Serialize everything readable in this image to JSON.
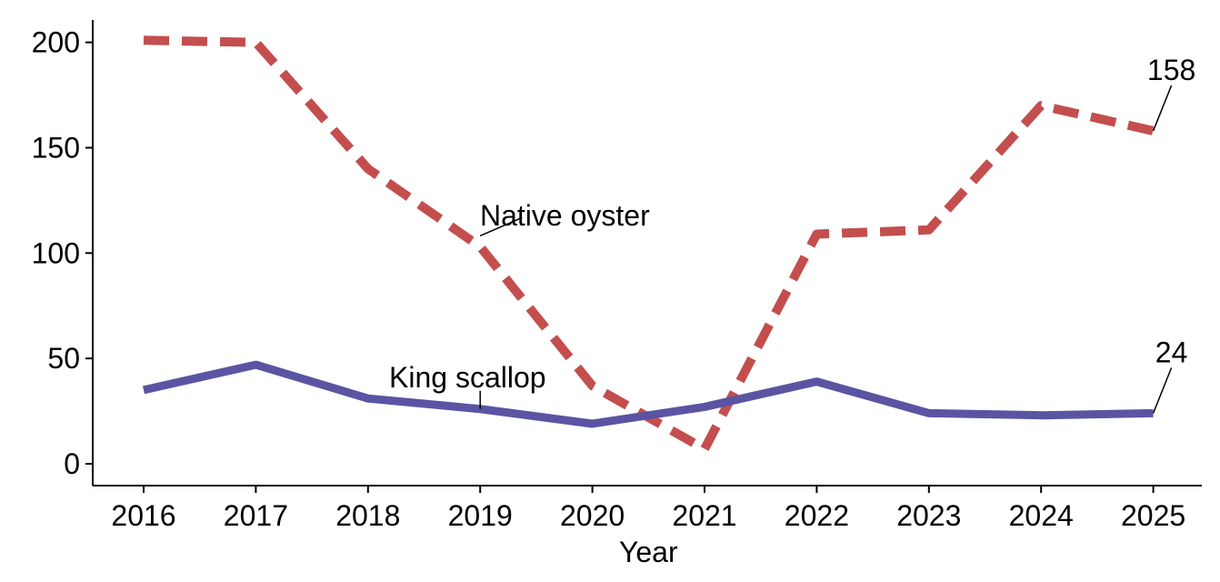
{
  "chart_data": {
    "type": "line",
    "title": "",
    "xlabel": "Year",
    "ylabel": "",
    "x": [
      2016,
      2017,
      2018,
      2019,
      2020,
      2021,
      2022,
      2023,
      2024,
      2025
    ],
    "ylim": [
      -10,
      210
    ],
    "yticks": [
      0,
      50,
      100,
      150,
      200
    ],
    "grid": false,
    "legend": "none",
    "series": [
      {
        "name": "Native oyster",
        "color": "#C44E4E",
        "style": "dashed",
        "values": [
          201,
          200,
          140,
          103,
          37,
          7,
          109,
          111,
          170,
          158
        ],
        "end_label": "158"
      },
      {
        "name": "King scallop",
        "color": "#5B54A3",
        "style": "solid",
        "values": [
          35,
          47,
          31,
          26,
          19,
          27,
          39,
          24,
          23,
          24
        ],
        "end_label": "24"
      }
    ]
  }
}
